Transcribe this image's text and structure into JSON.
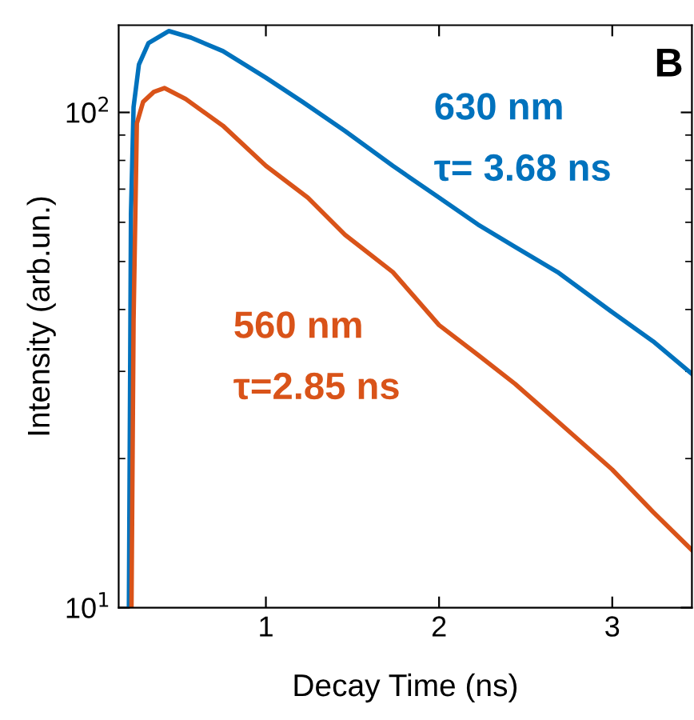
{
  "chart_data": {
    "type": "line",
    "xlabel": "Decay Time (ns)",
    "ylabel": "Intensity (arb.un.)",
    "log": "y",
    "xlim": [
      0.15,
      3.46
    ],
    "ylim": [
      10,
      150
    ],
    "xticks": [
      1,
      2,
      3
    ],
    "yticks": [
      {
        "value": 10,
        "label": "10$^{1}$"
      },
      {
        "value": 100,
        "label": "10$^{2}$"
      }
    ],
    "grid": false,
    "legend": false,
    "marker": "none",
    "line_style": "solid",
    "series": [
      {
        "name": "630 nm",
        "color": "#0072bd",
        "x": [
          0.209,
          0.221,
          0.236,
          0.267,
          0.322,
          0.439,
          0.567,
          0.752,
          1.0,
          1.212,
          1.457,
          1.733,
          2.0,
          2.224,
          2.439,
          2.684,
          3.0,
          3.236,
          3.457
        ],
        "values": [
          10,
          62.5,
          102.5,
          125,
          138,
          146,
          141.6,
          133,
          117.5,
          105,
          91.7,
          78,
          67.3,
          59.4,
          53.5,
          47.6,
          39.5,
          34.5,
          29.7
        ]
      },
      {
        "name": "560 nm",
        "color": "#d95319",
        "x": [
          0.224,
          0.236,
          0.255,
          0.291,
          0.353,
          0.414,
          0.537,
          0.752,
          1.0,
          1.242,
          1.457,
          1.733,
          2.0,
          2.224,
          2.439,
          2.684,
          3.0,
          3.236,
          3.457
        ],
        "values": [
          10,
          38,
          95,
          105,
          110,
          112,
          106.4,
          94,
          78,
          67.3,
          56.6,
          47.6,
          37.2,
          32.4,
          28.3,
          23.8,
          19.0,
          15.6,
          13.1
        ]
      }
    ],
    "annotations": [
      "τ= 3.68 ns",
      "τ=2.85 ns",
      "B"
    ]
  }
}
